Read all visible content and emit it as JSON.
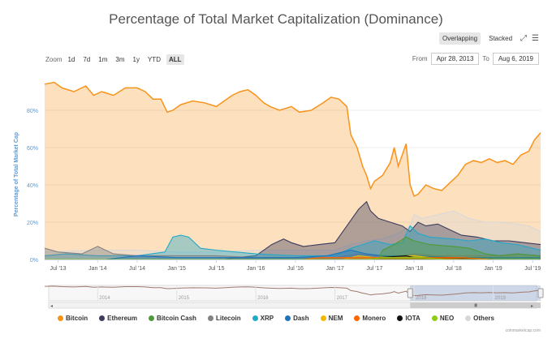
{
  "header": {
    "title": "Percentage of Total Market Capitalization (Dominance)"
  },
  "modes": {
    "overlapping": "Overlapping",
    "stacked": "Stacked"
  },
  "zoom": {
    "label": "Zoom",
    "options": [
      "1d",
      "7d",
      "1m",
      "3m",
      "1y",
      "YTD",
      "ALL"
    ],
    "active": "ALL"
  },
  "range": {
    "from_label": "From",
    "from": "Apr 28, 2013",
    "to_label": "To",
    "to": "Aug 6, 2019"
  },
  "credit": "coinmarketcap.com",
  "colors": {
    "Bitcoin": "#f7931a",
    "Ethereum": "#3c3c5d",
    "Bitcoin Cash": "#4d9b36",
    "Litecoin": "#838383",
    "XRP": "#23a8c9",
    "Dash": "#1c75bc",
    "NEM": "#f5b800",
    "Monero": "#ff6600",
    "IOTA": "#111111",
    "NEO": "#8fcc14",
    "Others": "#d8d8d8"
  },
  "chart_data": {
    "type": "area",
    "title": "Percentage of Total Market Capitalization (Dominance)",
    "ylabel": "Percentage of Total Market Cap",
    "ylim": [
      0,
      100
    ],
    "yticks": [
      "0%",
      "20%",
      "40%",
      "60%",
      "80%"
    ],
    "ytick_values": [
      0,
      20,
      40,
      60,
      80
    ],
    "xlim": [
      2013.33,
      2019.6
    ],
    "xticks": [
      {
        "label": "Jul '13",
        "t": 2013.5
      },
      {
        "label": "Jan '14",
        "t": 2014.0
      },
      {
        "label": "Jul '14",
        "t": 2014.5
      },
      {
        "label": "Jan '15",
        "t": 2015.0
      },
      {
        "label": "Jul '15",
        "t": 2015.5
      },
      {
        "label": "Jan '16",
        "t": 2016.0
      },
      {
        "label": "Jul '16",
        "t": 2016.5
      },
      {
        "label": "Jan '17",
        "t": 2017.0
      },
      {
        "label": "Jul '17",
        "t": 2017.5
      },
      {
        "label": "Jan '18",
        "t": 2018.0
      },
      {
        "label": "Jul '18",
        "t": 2018.5
      },
      {
        "label": "Jan '19",
        "t": 2019.0
      },
      {
        "label": "Jul '19",
        "t": 2019.5
      }
    ],
    "navigator_labels": [
      {
        "label": "2014",
        "t": 2014.0
      },
      {
        "label": "2015",
        "t": 2015.0
      },
      {
        "label": "2016",
        "t": 2016.0
      },
      {
        "label": "2017",
        "t": 2017.0
      },
      {
        "label": "2018",
        "t": 2018.0
      },
      {
        "label": "2019",
        "t": 2019.0
      }
    ],
    "series": [
      {
        "name": "Bitcoin",
        "points": [
          [
            2013.33,
            94
          ],
          [
            2013.45,
            95
          ],
          [
            2013.55,
            92
          ],
          [
            2013.7,
            90
          ],
          [
            2013.85,
            93
          ],
          [
            2013.95,
            88
          ],
          [
            2014.05,
            90
          ],
          [
            2014.2,
            88
          ],
          [
            2014.35,
            92
          ],
          [
            2014.5,
            92
          ],
          [
            2014.6,
            90
          ],
          [
            2014.7,
            86
          ],
          [
            2014.8,
            86
          ],
          [
            2014.88,
            79
          ],
          [
            2014.95,
            80
          ],
          [
            2015.05,
            83
          ],
          [
            2015.2,
            85
          ],
          [
            2015.35,
            84
          ],
          [
            2015.5,
            82
          ],
          [
            2015.6,
            85
          ],
          [
            2015.7,
            88
          ],
          [
            2015.8,
            90
          ],
          [
            2015.9,
            91
          ],
          [
            2016.0,
            88
          ],
          [
            2016.1,
            84
          ],
          [
            2016.18,
            82
          ],
          [
            2016.3,
            80
          ],
          [
            2016.45,
            82
          ],
          [
            2016.55,
            79
          ],
          [
            2016.7,
            80
          ],
          [
            2016.85,
            84
          ],
          [
            2016.95,
            87
          ],
          [
            2017.05,
            86
          ],
          [
            2017.15,
            82
          ],
          [
            2017.2,
            67
          ],
          [
            2017.28,
            60
          ],
          [
            2017.35,
            50
          ],
          [
            2017.4,
            45
          ],
          [
            2017.45,
            38
          ],
          [
            2017.5,
            42
          ],
          [
            2017.6,
            45
          ],
          [
            2017.7,
            52
          ],
          [
            2017.75,
            60
          ],
          [
            2017.8,
            50
          ],
          [
            2017.9,
            62
          ],
          [
            2017.95,
            40
          ],
          [
            2018.0,
            34
          ],
          [
            2018.05,
            35
          ],
          [
            2018.15,
            40
          ],
          [
            2018.25,
            38
          ],
          [
            2018.35,
            37
          ],
          [
            2018.45,
            41
          ],
          [
            2018.55,
            45
          ],
          [
            2018.65,
            51
          ],
          [
            2018.75,
            53
          ],
          [
            2018.85,
            52
          ],
          [
            2018.95,
            54
          ],
          [
            2019.05,
            52
          ],
          [
            2019.15,
            53
          ],
          [
            2019.25,
            51
          ],
          [
            2019.35,
            56
          ],
          [
            2019.45,
            58
          ],
          [
            2019.52,
            64
          ],
          [
            2019.6,
            68
          ]
        ]
      },
      {
        "name": "Others",
        "points": [
          [
            2013.33,
            4
          ],
          [
            2014.0,
            5
          ],
          [
            2014.5,
            5
          ],
          [
            2015.0,
            4
          ],
          [
            2015.5,
            4
          ],
          [
            2016.0,
            5
          ],
          [
            2016.5,
            5
          ],
          [
            2017.0,
            5
          ],
          [
            2017.2,
            8
          ],
          [
            2017.4,
            10
          ],
          [
            2017.6,
            11
          ],
          [
            2017.8,
            14
          ],
          [
            2017.95,
            18
          ],
          [
            2018.0,
            24
          ],
          [
            2018.1,
            22
          ],
          [
            2018.3,
            24
          ],
          [
            2018.5,
            26
          ],
          [
            2018.7,
            22
          ],
          [
            2018.9,
            20
          ],
          [
            2019.1,
            20
          ],
          [
            2019.3,
            19
          ],
          [
            2019.45,
            18
          ],
          [
            2019.6,
            15
          ]
        ]
      },
      {
        "name": "Ethereum",
        "points": [
          [
            2013.33,
            0
          ],
          [
            2015.6,
            0
          ],
          [
            2015.75,
            1
          ],
          [
            2016.0,
            2
          ],
          [
            2016.2,
            8
          ],
          [
            2016.35,
            11
          ],
          [
            2016.45,
            9
          ],
          [
            2016.6,
            7
          ],
          [
            2016.8,
            8
          ],
          [
            2017.0,
            9
          ],
          [
            2017.15,
            18
          ],
          [
            2017.3,
            27
          ],
          [
            2017.4,
            31
          ],
          [
            2017.45,
            26
          ],
          [
            2017.55,
            22
          ],
          [
            2017.7,
            20
          ],
          [
            2017.85,
            18
          ],
          [
            2017.95,
            15
          ],
          [
            2018.05,
            20
          ],
          [
            2018.15,
            18
          ],
          [
            2018.3,
            19
          ],
          [
            2018.45,
            16
          ],
          [
            2018.6,
            13
          ],
          [
            2018.8,
            12
          ],
          [
            2019.0,
            10
          ],
          [
            2019.2,
            10
          ],
          [
            2019.4,
            9
          ],
          [
            2019.6,
            8
          ]
        ]
      },
      {
        "name": "XRP",
        "points": [
          [
            2013.33,
            2
          ],
          [
            2013.6,
            3
          ],
          [
            2014.0,
            2
          ],
          [
            2014.5,
            2
          ],
          [
            2014.85,
            4
          ],
          [
            2014.95,
            12
          ],
          [
            2015.05,
            13
          ],
          [
            2015.15,
            12
          ],
          [
            2015.3,
            6
          ],
          [
            2015.5,
            5
          ],
          [
            2016.0,
            3
          ],
          [
            2016.5,
            2
          ],
          [
            2017.0,
            2
          ],
          [
            2017.2,
            6
          ],
          [
            2017.35,
            8
          ],
          [
            2017.5,
            10
          ],
          [
            2017.7,
            8
          ],
          [
            2017.85,
            9
          ],
          [
            2017.95,
            18
          ],
          [
            2018.05,
            14
          ],
          [
            2018.2,
            12
          ],
          [
            2018.5,
            11
          ],
          [
            2018.7,
            10
          ],
          [
            2018.9,
            11
          ],
          [
            2019.1,
            9
          ],
          [
            2019.3,
            8
          ],
          [
            2019.6,
            5
          ]
        ]
      },
      {
        "name": "Litecoin",
        "points": [
          [
            2013.33,
            6
          ],
          [
            2013.5,
            4
          ],
          [
            2013.8,
            3
          ],
          [
            2014.0,
            7
          ],
          [
            2014.2,
            3
          ],
          [
            2014.5,
            2
          ],
          [
            2015.0,
            2
          ],
          [
            2015.5,
            2
          ],
          [
            2016.0,
            1
          ],
          [
            2016.5,
            1
          ],
          [
            2017.0,
            1
          ],
          [
            2017.3,
            3
          ],
          [
            2017.5,
            2
          ],
          [
            2017.8,
            2
          ],
          [
            2018.0,
            3
          ],
          [
            2018.3,
            2
          ],
          [
            2018.6,
            2
          ],
          [
            2019.0,
            2
          ],
          [
            2019.3,
            3
          ],
          [
            2019.6,
            2
          ]
        ]
      },
      {
        "name": "Dash",
        "points": [
          [
            2013.33,
            0
          ],
          [
            2014.1,
            0
          ],
          [
            2014.3,
            1
          ],
          [
            2014.5,
            2
          ],
          [
            2015.0,
            1
          ],
          [
            2015.5,
            1
          ],
          [
            2016.0,
            1
          ],
          [
            2016.5,
            1
          ],
          [
            2016.9,
            2
          ],
          [
            2017.2,
            5
          ],
          [
            2017.4,
            3
          ],
          [
            2017.6,
            2
          ],
          [
            2018.0,
            2
          ],
          [
            2018.5,
            1
          ],
          [
            2019.0,
            1
          ],
          [
            2019.6,
            1
          ]
        ]
      },
      {
        "name": "Bitcoin Cash",
        "points": [
          [
            2013.33,
            0
          ],
          [
            2017.55,
            0
          ],
          [
            2017.6,
            5
          ],
          [
            2017.75,
            8
          ],
          [
            2017.9,
            12
          ],
          [
            2018.0,
            10
          ],
          [
            2018.2,
            8
          ],
          [
            2018.5,
            7
          ],
          [
            2018.7,
            6
          ],
          [
            2018.9,
            3
          ],
          [
            2019.1,
            2
          ],
          [
            2019.3,
            3
          ],
          [
            2019.6,
            2
          ]
        ]
      },
      {
        "name": "NEM",
        "points": [
          [
            2013.33,
            0
          ],
          [
            2017.1,
            0
          ],
          [
            2017.3,
            2
          ],
          [
            2017.5,
            1
          ],
          [
            2018.0,
            2
          ],
          [
            2018.2,
            1
          ],
          [
            2018.6,
            0
          ],
          [
            2019.6,
            0
          ]
        ]
      },
      {
        "name": "IOTA",
        "points": [
          [
            2013.33,
            0
          ],
          [
            2017.45,
            0
          ],
          [
            2017.55,
            1
          ],
          [
            2017.9,
            2
          ],
          [
            2018.0,
            1
          ],
          [
            2018.5,
            1
          ],
          [
            2019.0,
            0
          ],
          [
            2019.6,
            0
          ]
        ]
      },
      {
        "name": "Monero",
        "points": [
          [
            2013.33,
            0
          ],
          [
            2016.6,
            0
          ],
          [
            2016.8,
            1
          ],
          [
            2017.2,
            1
          ],
          [
            2017.6,
            1
          ],
          [
            2018.0,
            1
          ],
          [
            2018.6,
            1
          ],
          [
            2019.0,
            0
          ],
          [
            2019.6,
            0
          ]
        ]
      },
      {
        "name": "NEO",
        "points": [
          [
            2013.33,
            0
          ],
          [
            2017.4,
            0
          ],
          [
            2017.6,
            1
          ],
          [
            2017.9,
            1
          ],
          [
            2018.1,
            1
          ],
          [
            2018.4,
            0
          ],
          [
            2019.6,
            0
          ]
        ]
      }
    ],
    "legend": [
      "Bitcoin",
      "Ethereum",
      "Bitcoin Cash",
      "Litecoin",
      "XRP",
      "Dash",
      "NEM",
      "Monero",
      "IOTA",
      "NEO",
      "Others"
    ]
  }
}
